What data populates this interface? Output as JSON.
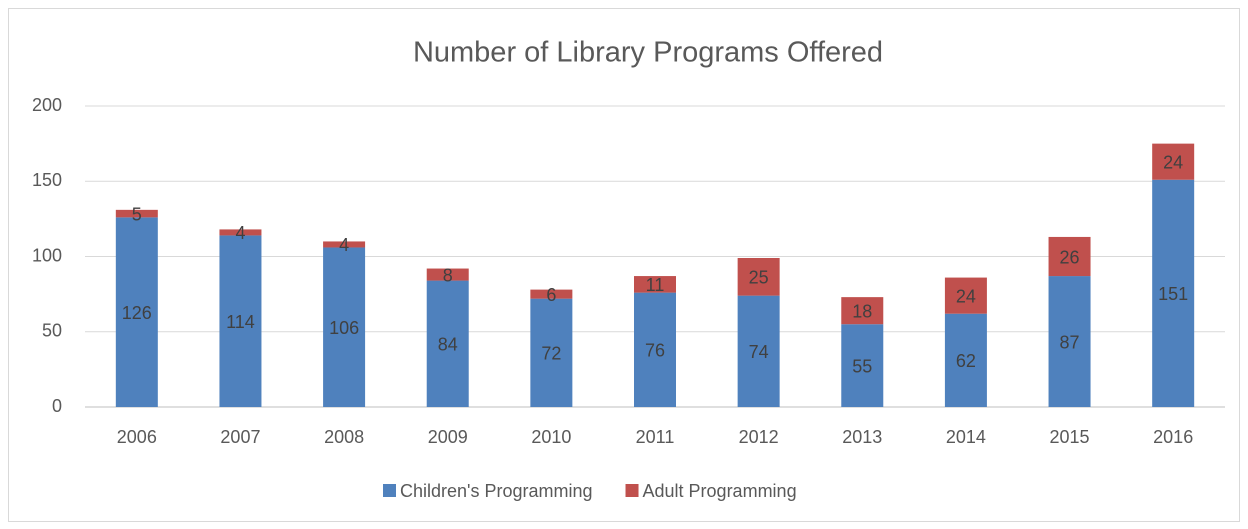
{
  "chart_data": {
    "type": "bar",
    "stacked": true,
    "title": "Number of Library Programs Offered",
    "categories": [
      "2006",
      "2007",
      "2008",
      "2009",
      "2010",
      "2011",
      "2012",
      "2013",
      "2014",
      "2015",
      "2016"
    ],
    "series": [
      {
        "name": "Children's Programming",
        "color": "#4f81bd",
        "values": [
          126,
          114,
          106,
          84,
          72,
          76,
          74,
          55,
          62,
          87,
          151
        ]
      },
      {
        "name": "Adult Programming",
        "color": "#c0504d",
        "values": [
          5,
          4,
          4,
          8,
          6,
          11,
          25,
          18,
          24,
          26,
          24
        ]
      }
    ],
    "ylim": [
      0,
      200
    ],
    "yticks": [
      0,
      50,
      100,
      150,
      200
    ],
    "grid": true,
    "legend": "bottom"
  }
}
